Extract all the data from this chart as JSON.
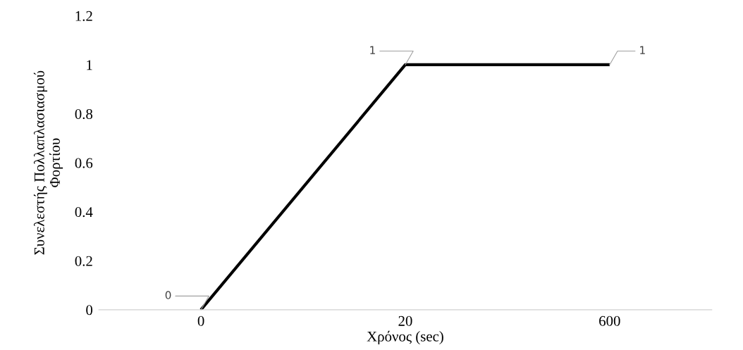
{
  "chart_data": {
    "type": "line",
    "xlabel": "Χρόνος (sec)",
    "ylabel": "Συνελεστής Πολλαπλασιασμού Φορτίου",
    "categories": [
      "0",
      "20",
      "600"
    ],
    "series": [
      {
        "color": "#000000",
        "values": [
          0,
          1,
          1
        ]
      }
    ],
    "ylim": [
      0,
      1.2
    ],
    "yticks": [
      0,
      0.2,
      0.4,
      0.6,
      0.8,
      1,
      1.2
    ],
    "grid": false,
    "legend": false,
    "marker": "none",
    "line_style": "solid",
    "data_labels": true
  }
}
